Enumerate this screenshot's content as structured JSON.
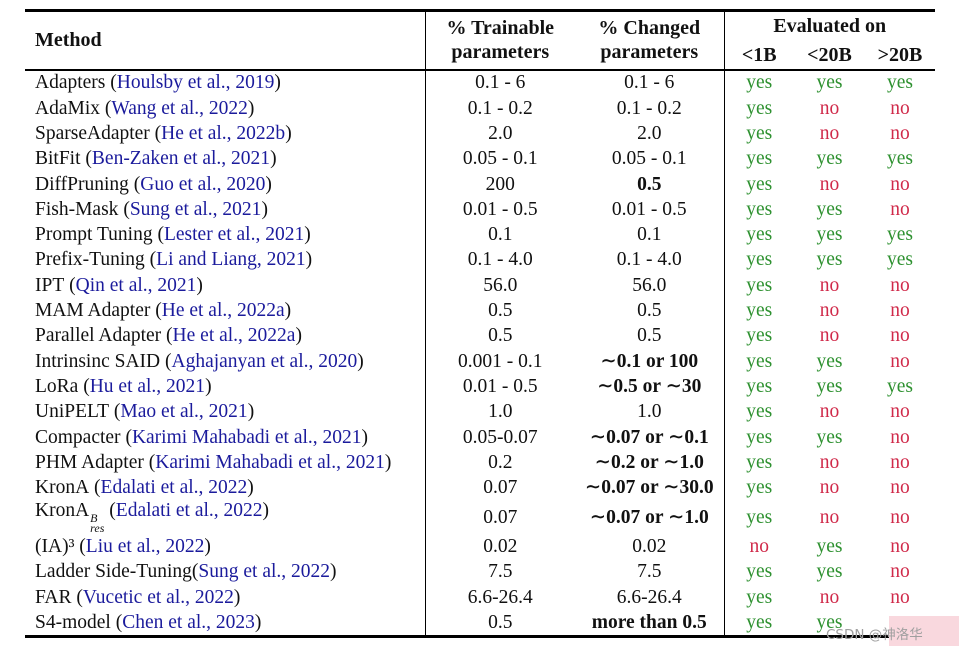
{
  "colors": {
    "citation_blue": "#1b1b9c",
    "yes_green": "#2e9130",
    "no_red": "#d02a4a",
    "rule_black": "#000000",
    "watermark_gray": "#9f9f9f",
    "watermark_highlight_pink": "#f9d8de"
  },
  "watermark": {
    "text": "CSDN @神洛华"
  },
  "table": {
    "headers": {
      "method": "Method",
      "trainable": [
        "% Trainable",
        "parameters"
      ],
      "changed": [
        "% Changed",
        "parameters"
      ],
      "evaluated_on": "Evaluated on",
      "eval_sizes": [
        "<1B",
        "<20B",
        ">20B"
      ]
    },
    "rows": [
      {
        "name": "Adapters",
        "cite": "Houlsby et al., 2019",
        "trainable": "0.1 - 6",
        "changed": "0.1 - 6",
        "changed_bold": false,
        "eval": [
          "yes",
          "yes",
          "yes"
        ]
      },
      {
        "name": "AdaMix",
        "cite": "Wang et al., 2022",
        "trainable": "0.1 - 0.2",
        "changed": "0.1 - 0.2",
        "changed_bold": false,
        "eval": [
          "yes",
          "no",
          "no"
        ]
      },
      {
        "name": "SparseAdapter",
        "cite": "He et al., 2022b",
        "trainable": "2.0",
        "changed": "2.0",
        "changed_bold": false,
        "eval": [
          "yes",
          "no",
          "no"
        ]
      },
      {
        "name": "BitFit",
        "cite": "Ben-Zaken et al., 2021",
        "trainable": "0.05 - 0.1",
        "changed": "0.05 - 0.1",
        "changed_bold": false,
        "eval": [
          "yes",
          "yes",
          "yes"
        ]
      },
      {
        "name": "DiffPruning",
        "cite": "Guo et al., 2020",
        "trainable": "200",
        "changed": "0.5",
        "changed_bold": true,
        "eval": [
          "yes",
          "no",
          "no"
        ]
      },
      {
        "name": "Fish-Mask",
        "cite": "Sung et al., 2021",
        "trainable": "0.01 - 0.5",
        "changed": "0.01 - 0.5",
        "changed_bold": false,
        "eval": [
          "yes",
          "yes",
          "no"
        ]
      },
      {
        "name": "Prompt Tuning",
        "cite": "Lester et al., 2021",
        "trainable": "0.1",
        "changed": "0.1",
        "changed_bold": false,
        "eval": [
          "yes",
          "yes",
          "yes"
        ]
      },
      {
        "name": "Prefix-Tuning",
        "cite": "Li and Liang, 2021",
        "trainable": "0.1 - 4.0",
        "changed": "0.1 - 4.0",
        "changed_bold": false,
        "eval": [
          "yes",
          "yes",
          "yes"
        ]
      },
      {
        "name": "IPT",
        "cite": "Qin et al., 2021",
        "trainable": "56.0",
        "changed": "56.0",
        "changed_bold": false,
        "eval": [
          "yes",
          "no",
          "no"
        ]
      },
      {
        "name": "MAM Adapter",
        "cite": "He et al., 2022a",
        "trainable": "0.5",
        "changed": "0.5",
        "changed_bold": false,
        "eval": [
          "yes",
          "no",
          "no"
        ]
      },
      {
        "name": "Parallel Adapter",
        "cite": "He et al., 2022a",
        "trainable": "0.5",
        "changed": "0.5",
        "changed_bold": false,
        "eval": [
          "yes",
          "no",
          "no"
        ]
      },
      {
        "name": "Intrinsinc SAID",
        "cite": "Aghajanyan et al., 2020",
        "trainable": "0.001 - 0.1",
        "changed": "∼0.1 or 100",
        "changed_bold": true,
        "eval": [
          "yes",
          "yes",
          "no"
        ]
      },
      {
        "name": "LoRa",
        "cite": "Hu et al., 2021",
        "trainable": "0.01 - 0.5",
        "changed": "∼0.5 or ∼30",
        "changed_bold": true,
        "eval": [
          "yes",
          "yes",
          "yes"
        ]
      },
      {
        "name": "UniPELT",
        "cite": "Mao et al., 2021",
        "trainable": "1.0",
        "changed": "1.0",
        "changed_bold": false,
        "eval": [
          "yes",
          "no",
          "no"
        ]
      },
      {
        "name": "Compacter",
        "cite": "Karimi Mahabadi et al., 2021",
        "trainable": "0.05-0.07",
        "changed": "∼0.07 or ∼0.1",
        "changed_bold": true,
        "eval": [
          "yes",
          "yes",
          "no"
        ]
      },
      {
        "name": "PHM Adapter",
        "cite": "Karimi Mahabadi et al., 2021",
        "trainable": "0.2",
        "changed": "∼0.2 or ∼1.0",
        "changed_bold": true,
        "eval": [
          "yes",
          "no",
          "no"
        ]
      },
      {
        "name": "KronA",
        "cite": "Edalati et al., 2022",
        "trainable": "0.07",
        "changed": "∼0.07 or ∼30.0",
        "changed_bold": true,
        "eval": [
          "yes",
          "no",
          "no"
        ]
      },
      {
        "name": "KronA",
        "sup": "B",
        "sub": "res",
        "cite": "Edalati et al., 2022",
        "trainable": "0.07",
        "changed": "∼0.07 or ∼1.0",
        "changed_bold": true,
        "eval": [
          "yes",
          "no",
          "no"
        ]
      },
      {
        "name": "(IA)³",
        "cite": "Liu et al., 2022",
        "trainable": "0.02",
        "changed": "0.02",
        "changed_bold": false,
        "eval": [
          "no",
          "yes",
          "no"
        ]
      },
      {
        "name": "Ladder Side-Tuning",
        "tight": true,
        "cite": "Sung et al., 2022",
        "trainable": "7.5",
        "changed": "7.5",
        "changed_bold": false,
        "eval": [
          "yes",
          "yes",
          "no"
        ]
      },
      {
        "name": "FAR",
        "cite": "Vucetic et al., 2022",
        "trainable": "6.6-26.4",
        "changed": "6.6-26.4",
        "changed_bold": false,
        "eval": [
          "yes",
          "no",
          "no"
        ]
      },
      {
        "name": "S4-model",
        "cite": "Chen et al., 2023",
        "trainable": "0.5",
        "changed": "more than 0.5",
        "changed_bold": true,
        "eval": [
          "yes",
          "yes",
          "no"
        ]
      }
    ]
  }
}
